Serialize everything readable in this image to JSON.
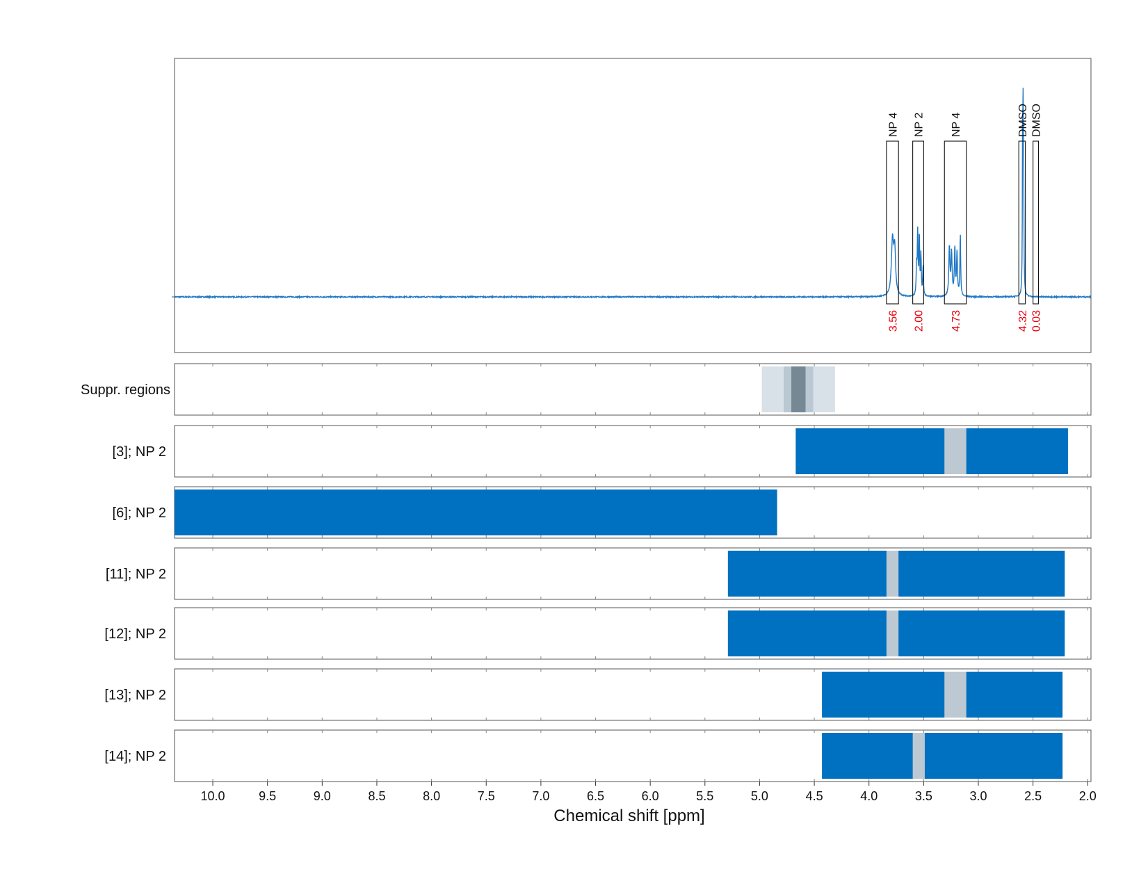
{
  "chart_data": {
    "type": "line",
    "xlabel": "Chemical shift [ppm]",
    "x_range": [
      10.35,
      1.97
    ],
    "x_ticks": [
      "10.0",
      "9.5",
      "9.0",
      "8.5",
      "8.0",
      "7.5",
      "7.0",
      "6.5",
      "6.0",
      "5.5",
      "5.0",
      "4.5",
      "4.0",
      "3.5",
      "3.0",
      "2.5",
      "2.0"
    ],
    "grid": true,
    "colors": {
      "spectrum": "#1f77c4",
      "bar": "#0070c0",
      "gap": "#bcc9d2",
      "annotation": "#e8000b",
      "suppr_outer": "#d9e1e8",
      "suppr_mid": "#b9c8d2",
      "suppr_core": "#778895"
    },
    "spectrum": {
      "baseline": 0.0,
      "y_range": [
        -0.58,
        1.0
      ],
      "peaks": [
        {
          "center": 3.785,
          "width": 0.012,
          "height": 0.19
        },
        {
          "center": 3.765,
          "width": 0.01,
          "height": 0.15
        },
        {
          "center": 3.555,
          "width": 0.004,
          "height": 0.22
        },
        {
          "center": 3.54,
          "width": 0.004,
          "height": 0.21
        },
        {
          "center": 3.525,
          "width": 0.004,
          "height": 0.14
        },
        {
          "center": 3.505,
          "width": 0.004,
          "height": 0.1
        },
        {
          "center": 3.565,
          "width": 0.004,
          "height": 0.1
        },
        {
          "center": 3.265,
          "width": 0.006,
          "height": 0.17
        },
        {
          "center": 3.245,
          "width": 0.006,
          "height": 0.15
        },
        {
          "center": 3.215,
          "width": 0.005,
          "height": 0.17
        },
        {
          "center": 3.195,
          "width": 0.005,
          "height": 0.15
        },
        {
          "center": 3.165,
          "width": 0.004,
          "height": 0.22
        },
        {
          "center": 2.595,
          "width": 0.0025,
          "height": 0.62
        },
        {
          "center": 2.59,
          "width": 0.0025,
          "height": 0.55
        },
        {
          "center": 2.585,
          "width": 0.0025,
          "height": 0.4
        }
      ],
      "integrals": [
        {
          "label": "NP 4",
          "from": 3.84,
          "to": 3.73,
          "value": "3.56"
        },
        {
          "label": "NP 2",
          "from": 3.6,
          "to": 3.5,
          "value": "2.00"
        },
        {
          "label": "NP 4",
          "from": 3.31,
          "to": 3.11,
          "value": "4.73"
        },
        {
          "label": "DMSO",
          "from": 2.63,
          "to": 2.57,
          "value": "4.32"
        },
        {
          "label": "DMSO",
          "from": 2.5,
          "to": 2.45,
          "value": "0.03"
        }
      ]
    },
    "suppression_regions": {
      "label": "Suppr. regions",
      "layers": [
        {
          "from": 4.98,
          "to": 4.31,
          "level": "outer"
        },
        {
          "from": 4.78,
          "to": 4.51,
          "level": "mid"
        },
        {
          "from": 4.71,
          "to": 4.58,
          "level": "core"
        }
      ]
    },
    "tracks": [
      {
        "label": "[3]; NP 2",
        "from": 4.67,
        "to": 2.18,
        "gaps": [
          [
            3.31,
            3.11
          ]
        ]
      },
      {
        "label": "[6]; NP 2",
        "from": 10.35,
        "to": 4.84,
        "gaps": []
      },
      {
        "label": "[11]; NP 2",
        "from": 5.29,
        "to": 2.21,
        "gaps": [
          [
            3.84,
            3.73
          ]
        ]
      },
      {
        "label": "[12]; NP 2",
        "from": 5.29,
        "to": 2.21,
        "gaps": [
          [
            3.84,
            3.73
          ]
        ]
      },
      {
        "label": "[13]; NP 2",
        "from": 4.43,
        "to": 2.23,
        "gaps": [
          [
            3.31,
            3.11
          ]
        ]
      },
      {
        "label": "[14]; NP 2",
        "from": 4.43,
        "to": 2.23,
        "gaps": [
          [
            3.6,
            3.49
          ]
        ]
      }
    ]
  }
}
